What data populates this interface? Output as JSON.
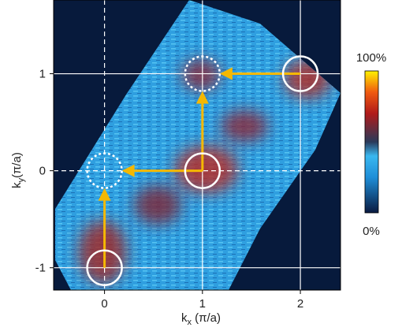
{
  "chart_data": {
    "type": "momentum-map",
    "xlabel": [
      "k",
      "x",
      " (π/a)"
    ],
    "ylabel": [
      "k",
      "y",
      "(π/a)"
    ],
    "xlim": [
      -0.52,
      2.41
    ],
    "ylim": [
      -1.23,
      1.76
    ],
    "xticks": [
      0,
      1,
      2
    ],
    "yticks": [
      -1,
      0,
      1
    ],
    "grid": true,
    "circles": {
      "solid": {
        "x": [
          0,
          1,
          2
        ],
        "y": [
          -1,
          0,
          1
        ]
      },
      "dashed": {
        "x": [
          0,
          1
        ],
        "y": [
          0,
          1
        ]
      }
    },
    "arrows": {
      "color": "#f5b800",
      "x1": [
        0,
        1,
        1,
        2
      ],
      "y1": [
        -1,
        0,
        0,
        1
      ],
      "x2": [
        0,
        0,
        1,
        1
      ],
      "y2": [
        0,
        0,
        1,
        1
      ]
    },
    "colorbar": {
      "lim": [
        0,
        100
      ],
      "top_label": "100%",
      "bottom_label": "0%"
    }
  }
}
